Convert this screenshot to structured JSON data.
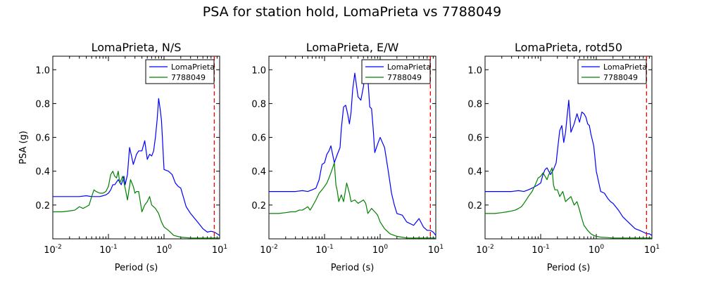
{
  "figure": {
    "suptitle": "PSA for station hold, LomaPrieta vs 7788049"
  },
  "chart_data": [
    {
      "type": "line",
      "title": "LomaPrieta, N/S",
      "xlabel": "Period (s)",
      "ylabel": "PSA (g)",
      "xscale": "log",
      "xlim": [
        0.01,
        10
      ],
      "ylim": [
        0.0,
        1.08
      ],
      "xticks": [
        {
          "base": "10",
          "exp": "-2"
        },
        {
          "base": "10",
          "exp": "-1"
        },
        {
          "base": "10",
          "exp": "0"
        },
        {
          "base": "10",
          "exp": "1"
        }
      ],
      "yticks": [
        "0.2",
        "0.4",
        "0.6",
        "0.8",
        "1.0"
      ],
      "legend_position": "top-right",
      "vline": {
        "x": 8.0,
        "color": "#ff0000",
        "style": "dashed"
      },
      "series": [
        {
          "name": "LomaPrieta",
          "color": "#0000ff",
          "x": [
            0.01,
            0.015,
            0.02,
            0.03,
            0.04,
            0.05,
            0.06,
            0.07,
            0.08,
            0.09,
            0.1,
            0.11,
            0.12,
            0.13,
            0.15,
            0.17,
            0.19,
            0.2,
            0.22,
            0.24,
            0.26,
            0.28,
            0.3,
            0.32,
            0.35,
            0.4,
            0.45,
            0.5,
            0.55,
            0.6,
            0.65,
            0.7,
            0.75,
            0.8,
            0.85,
            0.9,
            1.0,
            1.2,
            1.4,
            1.6,
            1.8,
            2.0,
            2.5,
            3.0,
            4.0,
            5.0,
            6.0,
            7.0,
            8.0,
            9.0,
            10.0
          ],
          "y": [
            0.25,
            0.25,
            0.25,
            0.25,
            0.255,
            0.25,
            0.25,
            0.25,
            0.255,
            0.26,
            0.27,
            0.29,
            0.32,
            0.32,
            0.35,
            0.32,
            0.37,
            0.32,
            0.38,
            0.54,
            0.49,
            0.44,
            0.47,
            0.5,
            0.52,
            0.52,
            0.58,
            0.47,
            0.5,
            0.49,
            0.52,
            0.6,
            0.7,
            0.83,
            0.77,
            0.7,
            0.41,
            0.4,
            0.38,
            0.33,
            0.31,
            0.3,
            0.19,
            0.15,
            0.1,
            0.06,
            0.04,
            0.045,
            0.04,
            0.03,
            0.02
          ]
        },
        {
          "name": "7788049",
          "color": "#008000",
          "x": [
            0.01,
            0.015,
            0.02,
            0.025,
            0.03,
            0.035,
            0.04,
            0.045,
            0.05,
            0.055,
            0.06,
            0.07,
            0.08,
            0.09,
            0.1,
            0.11,
            0.12,
            0.13,
            0.14,
            0.15,
            0.16,
            0.17,
            0.18,
            0.2,
            0.22,
            0.25,
            0.28,
            0.3,
            0.32,
            0.35,
            0.4,
            0.45,
            0.5,
            0.55,
            0.6,
            0.7,
            0.8,
            0.9,
            1.0,
            1.2,
            1.5,
            2.0,
            3.0,
            5.0,
            7.0,
            10.0
          ],
          "y": [
            0.16,
            0.16,
            0.165,
            0.17,
            0.19,
            0.18,
            0.19,
            0.2,
            0.25,
            0.29,
            0.28,
            0.27,
            0.27,
            0.28,
            0.31,
            0.38,
            0.4,
            0.37,
            0.36,
            0.4,
            0.33,
            0.35,
            0.37,
            0.3,
            0.23,
            0.35,
            0.31,
            0.27,
            0.28,
            0.28,
            0.16,
            0.2,
            0.22,
            0.25,
            0.2,
            0.18,
            0.15,
            0.1,
            0.07,
            0.05,
            0.02,
            0.01,
            0.005,
            0.005,
            0.005,
            0.005
          ]
        }
      ]
    },
    {
      "type": "line",
      "title": "LomaPrieta, E/W",
      "xlabel": "Period (s)",
      "ylabel": "",
      "xscale": "log",
      "xlim": [
        0.01,
        10
      ],
      "ylim": [
        0.0,
        1.08
      ],
      "xticks": [
        {
          "base": "10",
          "exp": "-2"
        },
        {
          "base": "10",
          "exp": "-1"
        },
        {
          "base": "10",
          "exp": "0"
        },
        {
          "base": "10",
          "exp": "1"
        }
      ],
      "yticks": [
        "0.2",
        "0.4",
        "0.6",
        "0.8",
        "1.0"
      ],
      "legend_position": "top-right",
      "vline": {
        "x": 8.0,
        "color": "#ff0000",
        "style": "dashed"
      },
      "series": [
        {
          "name": "LomaPrieta",
          "color": "#0000ff",
          "x": [
            0.01,
            0.015,
            0.02,
            0.03,
            0.04,
            0.05,
            0.06,
            0.07,
            0.08,
            0.09,
            0.1,
            0.11,
            0.12,
            0.13,
            0.15,
            0.17,
            0.19,
            0.2,
            0.22,
            0.24,
            0.26,
            0.28,
            0.3,
            0.32,
            0.35,
            0.4,
            0.45,
            0.5,
            0.55,
            0.6,
            0.65,
            0.7,
            0.75,
            0.8,
            0.9,
            1.0,
            1.2,
            1.4,
            1.6,
            1.8,
            2.0,
            2.5,
            3.0,
            4.0,
            5.0,
            6.0,
            7.0,
            8.0,
            9.0,
            10.0
          ],
          "y": [
            0.28,
            0.28,
            0.28,
            0.28,
            0.285,
            0.28,
            0.29,
            0.3,
            0.35,
            0.44,
            0.45,
            0.5,
            0.52,
            0.55,
            0.45,
            0.5,
            0.54,
            0.65,
            0.78,
            0.79,
            0.74,
            0.68,
            0.75,
            0.88,
            0.98,
            0.84,
            0.82,
            0.9,
            1.0,
            0.95,
            0.78,
            0.77,
            0.65,
            0.51,
            0.56,
            0.6,
            0.54,
            0.4,
            0.27,
            0.2,
            0.15,
            0.14,
            0.1,
            0.08,
            0.12,
            0.07,
            0.05,
            0.05,
            0.04,
            0.02
          ]
        },
        {
          "name": "7788049",
          "color": "#008000",
          "x": [
            0.01,
            0.015,
            0.02,
            0.025,
            0.03,
            0.035,
            0.04,
            0.045,
            0.05,
            0.055,
            0.06,
            0.07,
            0.08,
            0.09,
            0.1,
            0.11,
            0.12,
            0.13,
            0.14,
            0.15,
            0.16,
            0.17,
            0.18,
            0.2,
            0.22,
            0.25,
            0.28,
            0.3,
            0.35,
            0.4,
            0.45,
            0.5,
            0.55,
            0.6,
            0.7,
            0.8,
            0.9,
            1.0,
            1.2,
            1.5,
            2.0,
            3.0,
            5.0,
            7.0,
            10.0
          ],
          "y": [
            0.15,
            0.15,
            0.155,
            0.16,
            0.16,
            0.17,
            0.17,
            0.18,
            0.19,
            0.17,
            0.19,
            0.23,
            0.27,
            0.29,
            0.31,
            0.33,
            0.36,
            0.39,
            0.42,
            0.45,
            0.32,
            0.28,
            0.22,
            0.26,
            0.22,
            0.33,
            0.27,
            0.22,
            0.23,
            0.21,
            0.22,
            0.23,
            0.21,
            0.15,
            0.18,
            0.16,
            0.14,
            0.1,
            0.06,
            0.03,
            0.015,
            0.005,
            0.005,
            0.005,
            0.005
          ]
        }
      ]
    },
    {
      "type": "line",
      "title": "LomaPrieta, rotd50",
      "xlabel": "Period (s)",
      "ylabel": "",
      "xscale": "log",
      "xlim": [
        0.01,
        10
      ],
      "ylim": [
        0.0,
        1.08
      ],
      "xticks": [
        {
          "base": "10",
          "exp": "-2"
        },
        {
          "base": "10",
          "exp": "-1"
        },
        {
          "base": "10",
          "exp": "0"
        },
        {
          "base": "10",
          "exp": "1"
        }
      ],
      "yticks": [
        "0.2",
        "0.4",
        "0.6",
        "0.8",
        "1.0"
      ],
      "legend_position": "top-right",
      "vline": {
        "x": 8.0,
        "color": "#ff0000",
        "style": "dashed"
      },
      "series": [
        {
          "name": "LomaPrieta",
          "color": "#0000ff",
          "x": [
            0.01,
            0.015,
            0.02,
            0.03,
            0.04,
            0.05,
            0.06,
            0.07,
            0.08,
            0.09,
            0.1,
            0.11,
            0.12,
            0.13,
            0.15,
            0.17,
            0.19,
            0.2,
            0.22,
            0.24,
            0.26,
            0.28,
            0.3,
            0.32,
            0.35,
            0.4,
            0.45,
            0.5,
            0.55,
            0.6,
            0.65,
            0.7,
            0.75,
            0.8,
            0.9,
            1.0,
            1.2,
            1.4,
            1.6,
            1.8,
            2.0,
            2.5,
            3.0,
            4.0,
            5.0,
            6.0,
            7.0,
            8.0,
            9.0,
            10.0
          ],
          "y": [
            0.28,
            0.28,
            0.28,
            0.28,
            0.285,
            0.28,
            0.29,
            0.3,
            0.31,
            0.32,
            0.33,
            0.38,
            0.41,
            0.42,
            0.38,
            0.41,
            0.45,
            0.52,
            0.64,
            0.67,
            0.57,
            0.63,
            0.73,
            0.82,
            0.63,
            0.68,
            0.74,
            0.69,
            0.75,
            0.74,
            0.72,
            0.68,
            0.67,
            0.62,
            0.55,
            0.4,
            0.28,
            0.27,
            0.24,
            0.22,
            0.21,
            0.17,
            0.13,
            0.09,
            0.06,
            0.05,
            0.04,
            0.03,
            0.03,
            0.02
          ]
        },
        {
          "name": "7788049",
          "color": "#008000",
          "x": [
            0.01,
            0.015,
            0.02,
            0.025,
            0.03,
            0.035,
            0.04,
            0.045,
            0.05,
            0.055,
            0.06,
            0.07,
            0.08,
            0.09,
            0.1,
            0.11,
            0.12,
            0.13,
            0.14,
            0.15,
            0.16,
            0.17,
            0.18,
            0.2,
            0.22,
            0.25,
            0.28,
            0.3,
            0.35,
            0.4,
            0.45,
            0.5,
            0.55,
            0.6,
            0.7,
            0.8,
            0.9,
            1.0,
            1.2,
            1.5,
            2.0,
            3.0,
            5.0,
            7.0,
            10.0
          ],
          "y": [
            0.15,
            0.15,
            0.155,
            0.16,
            0.165,
            0.17,
            0.18,
            0.19,
            0.21,
            0.23,
            0.25,
            0.28,
            0.32,
            0.36,
            0.37,
            0.39,
            0.37,
            0.35,
            0.38,
            0.4,
            0.42,
            0.32,
            0.29,
            0.29,
            0.25,
            0.28,
            0.22,
            0.23,
            0.25,
            0.2,
            0.22,
            0.17,
            0.12,
            0.08,
            0.05,
            0.03,
            0.02,
            0.015,
            0.01,
            0.008,
            0.005,
            0.005,
            0.005,
            0.005,
            0.005
          ]
        }
      ]
    }
  ]
}
